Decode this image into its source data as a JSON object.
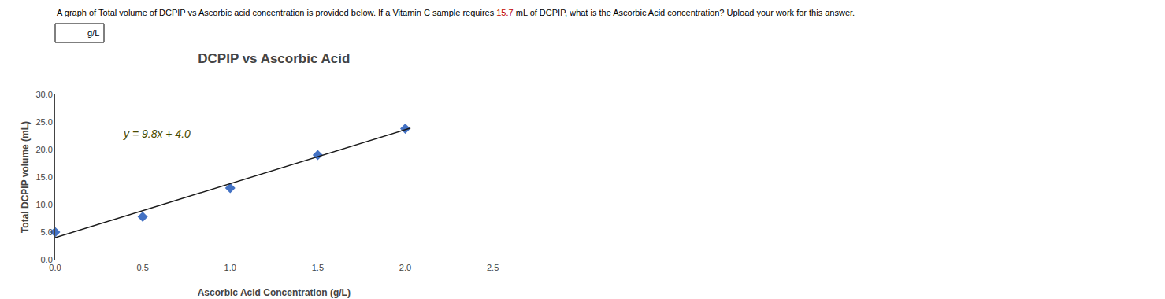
{
  "chart_data": {
    "type": "scatter",
    "title": "DCPIP vs Ascorbic Acid",
    "subtitle": [
      {
        "text": "A graph of Total volume of DCPIP vs Ascorbic acid concentration is provided below. If a Vitamin C sample requires "
      },
      {
        "text": "15.7",
        "color": "#C00000"
      },
      {
        "text": " mL of DCPIP, what is the Ascorbic Acid concentration? Upload your work for this answer."
      }
    ],
    "xlabel": "Ascorbic Acid Concentration (g/L)",
    "ylabel": "Total DCPIP volume (mL)",
    "annotations": [
      {
        "text": "y = 9.8x + 4.0",
        "x": 0.38,
        "y": 21.5,
        "color": "#4B4B00"
      },
      {
        "text": "g/L"
      }
    ],
    "series": [
      {
        "type": "scatter",
        "marker": "diamond",
        "color": "#4472C4",
        "x": [
          0.0,
          0.5,
          1.0,
          1.5,
          2.0
        ],
        "values": [
          5.0,
          7.8,
          13.0,
          19.0,
          23.8
        ]
      },
      {
        "type": "line",
        "line_style": "solid",
        "color": "#1A1A1A",
        "x": [
          0.0,
          2.03
        ],
        "values": [
          4.0,
          23.894
        ]
      }
    ],
    "xlim": [
      0.0,
      2.5
    ],
    "ylim": [
      0.0,
      30.0
    ],
    "xticks": [
      {
        "value": 0,
        "label": "0.0"
      },
      0.5,
      {
        "value": 1,
        "label": "1.0"
      },
      1.5,
      {
        "value": 2,
        "label": "2.0"
      },
      2.5
    ],
    "yticks": [
      {
        "value": 0,
        "label": "0.0"
      },
      {
        "value": 5,
        "label": "5.0"
      },
      {
        "value": 10,
        "label": "10.0"
      },
      {
        "value": 15,
        "label": "15.0"
      },
      {
        "value": 20,
        "label": "20.0"
      },
      {
        "value": 25,
        "label": "25.0"
      },
      {
        "value": 30,
        "label": "30.0"
      }
    ],
    "grid": false
  }
}
